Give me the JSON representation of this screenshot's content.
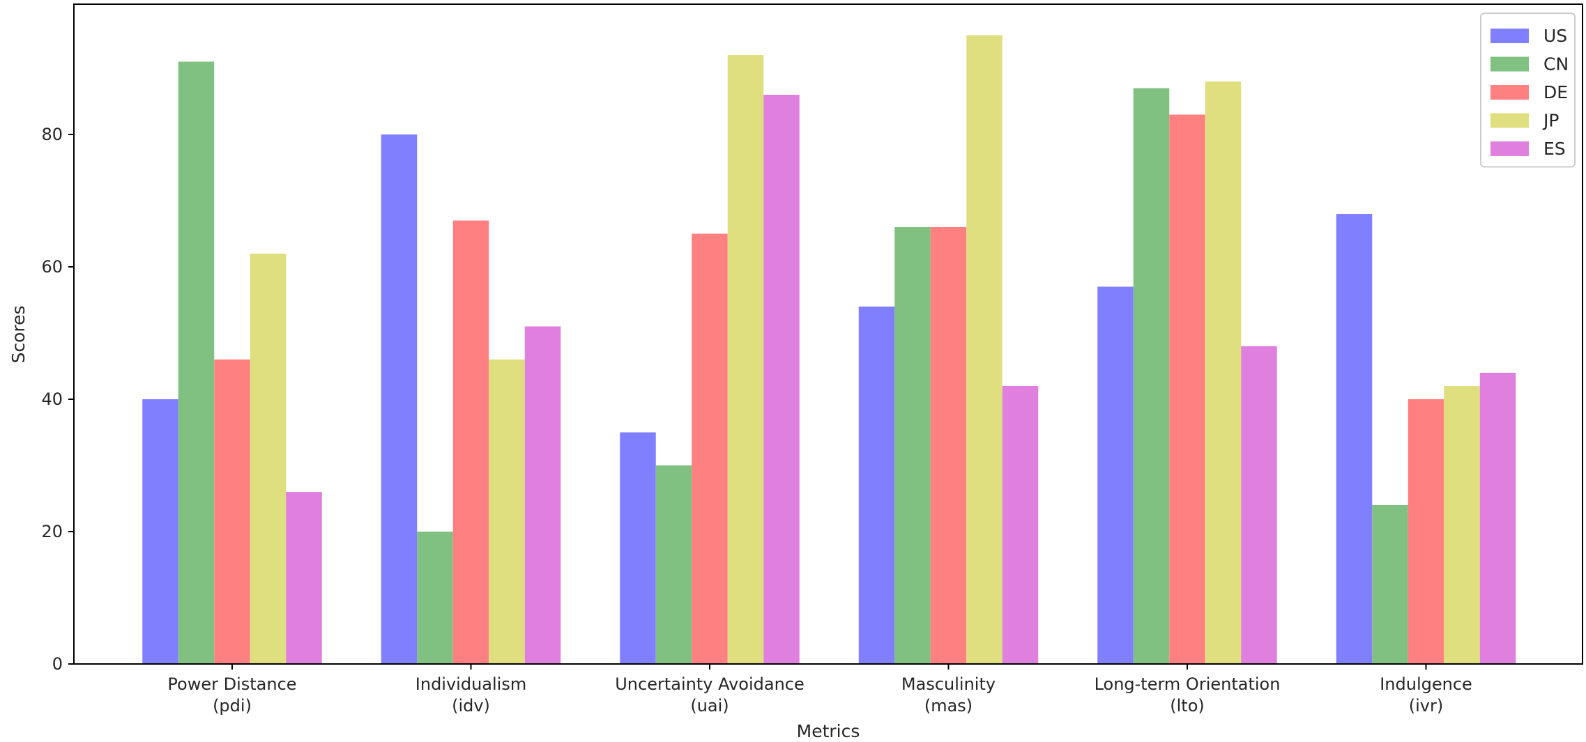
{
  "chart_data": {
    "type": "bar",
    "title": "",
    "xlabel": "Metrics",
    "ylabel": "Scores",
    "ylim": [
      0,
      100
    ],
    "yticks": [
      0,
      20,
      40,
      60,
      80
    ],
    "grid": false,
    "legend_position": "top-right",
    "categories": [
      [
        "Power Distance",
        "(pdi)"
      ],
      [
        "Individualism",
        "(idv)"
      ],
      [
        "Uncertainty Avoidance",
        "(uai)"
      ],
      [
        "Masculinity",
        "(mas)"
      ],
      [
        "Long-term Orientation",
        "(lto)"
      ],
      [
        "Indulgence",
        "(ivr)"
      ]
    ],
    "series": [
      {
        "name": "US",
        "color": "#8080ff",
        "values": [
          40,
          80,
          35,
          54,
          57,
          68
        ]
      },
      {
        "name": "CN",
        "color": "#80c080",
        "values": [
          91,
          20,
          30,
          66,
          87,
          24
        ]
      },
      {
        "name": "DE",
        "color": "#ff8080",
        "values": [
          46,
          67,
          65,
          66,
          83,
          40
        ]
      },
      {
        "name": "JP",
        "color": "#dfdf80",
        "values": [
          62,
          46,
          92,
          95,
          88,
          42
        ]
      },
      {
        "name": "ES",
        "color": "#df80df",
        "values": [
          26,
          51,
          86,
          42,
          48,
          44
        ]
      }
    ]
  }
}
